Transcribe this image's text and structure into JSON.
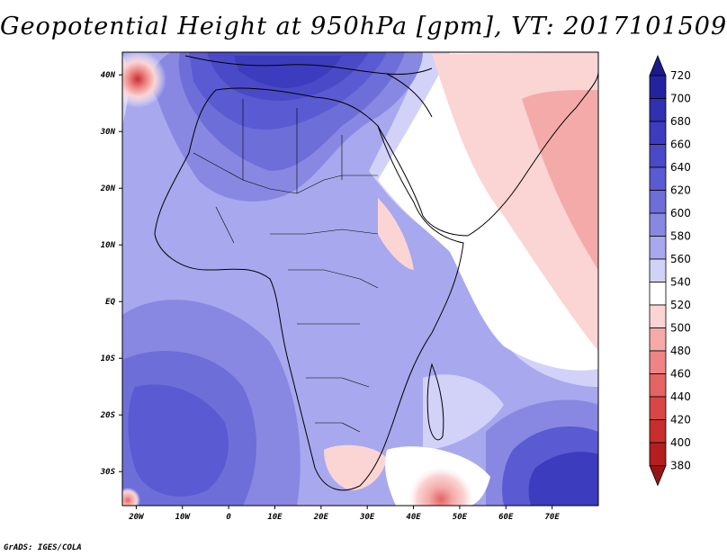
{
  "title": "Geopotential Height at 950hPa [gpm], VT: 2017101509",
  "credit": "GrADS: IGES/COLA",
  "map": {
    "lon_range": [
      -23,
      80
    ],
    "lat_range": [
      -36,
      44
    ],
    "lon_ticks": [
      "20W",
      "10W",
      "0",
      "10E",
      "20E",
      "30E",
      "40E",
      "50E",
      "60E",
      "70E"
    ],
    "lat_ticks": [
      "40N",
      "30N",
      "20N",
      "10N",
      "EQ",
      "10S",
      "20S",
      "30S"
    ]
  },
  "colorbar": {
    "levels": [
      "720",
      "700",
      "680",
      "660",
      "640",
      "620",
      "600",
      "580",
      "560",
      "540",
      "520",
      "500",
      "480",
      "460",
      "440",
      "420",
      "400",
      "380"
    ],
    "colors": [
      "#1a1a8c",
      "#2323a0",
      "#3030b0",
      "#3c3cbe",
      "#4a4ac8",
      "#5a5ad2",
      "#6e6ed9",
      "#8888e2",
      "#a8a8ee",
      "#d2d2f8",
      "#ffffff",
      "#fbd4d4",
      "#f5aaaa",
      "#ee8484",
      "#e46464",
      "#d84646",
      "#c82e2e",
      "#b41e1e",
      "#961414"
    ]
  }
}
